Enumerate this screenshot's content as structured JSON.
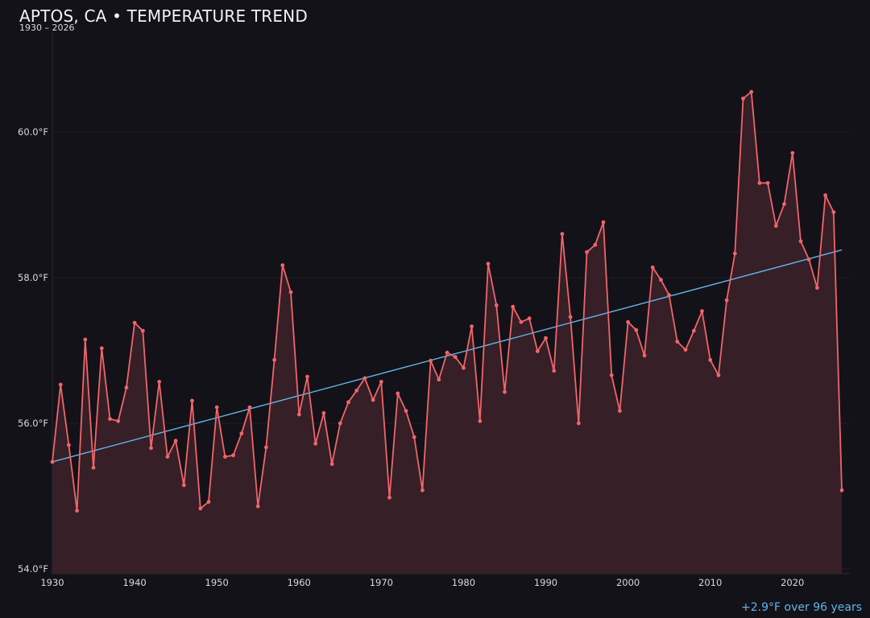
{
  "header": {
    "title": "APTOS, CA • TEMPERATURE TREND",
    "subtitle": "1930 – 2026"
  },
  "footer": {
    "annotation": "+2.9°F over 96 years"
  },
  "colors": {
    "background": "#131218",
    "line": "#f0656b",
    "fill": "#361f26",
    "trend": "#5fb6ea",
    "grid": "#1f1e25",
    "axis": "#2a2930",
    "text": "#d8d8dc"
  },
  "chart_data": {
    "type": "line",
    "title": "APTOS, CA • TEMPERATURE TREND",
    "subtitle": "1930 – 2026",
    "xlabel": "",
    "ylabel": "",
    "xlim": [
      1930,
      2026
    ],
    "ylim": [
      54.0,
      61.0
    ],
    "x_ticks": [
      1930,
      1940,
      1950,
      1960,
      1970,
      1980,
      1990,
      2000,
      2010,
      2020
    ],
    "y_ticks": [
      54.0,
      56.0,
      58.0,
      60.0
    ],
    "y_tick_labels": [
      "54.0°F",
      "56.0°F",
      "58.0°F",
      "60.0°F"
    ],
    "grid": true,
    "annotation": "+2.9°F over 96 years",
    "series": [
      {
        "name": "Annual mean temperature (°F)",
        "style": "line-with-markers-and-area-fill",
        "x": [
          1930,
          1931,
          1932,
          1933,
          1934,
          1935,
          1936,
          1937,
          1938,
          1939,
          1940,
          1941,
          1942,
          1943,
          1944,
          1945,
          1946,
          1947,
          1948,
          1949,
          1950,
          1951,
          1952,
          1953,
          1954,
          1955,
          1956,
          1957,
          1958,
          1959,
          1960,
          1961,
          1962,
          1963,
          1964,
          1965,
          1966,
          1967,
          1968,
          1969,
          1970,
          1971,
          1972,
          1973,
          1974,
          1975,
          1976,
          1977,
          1978,
          1979,
          1980,
          1981,
          1982,
          1983,
          1984,
          1985,
          1986,
          1987,
          1988,
          1989,
          1990,
          1991,
          1992,
          1993,
          1994,
          1995,
          1996,
          1997,
          1998,
          1999,
          2000,
          2001,
          2002,
          2003,
          2004,
          2005,
          2006,
          2007,
          2008,
          2009,
          2010,
          2011,
          2012,
          2013,
          2014,
          2015,
          2016,
          2017,
          2018,
          2019,
          2020,
          2021,
          2022,
          2023,
          2024,
          2025,
          2026
        ],
        "values": [
          55.47,
          56.53,
          55.7,
          54.8,
          57.15,
          55.39,
          57.03,
          56.06,
          56.03,
          56.49,
          57.38,
          57.27,
          55.66,
          56.57,
          55.54,
          55.76,
          55.15,
          56.31,
          54.83,
          54.92,
          56.22,
          55.54,
          55.56,
          55.86,
          56.22,
          54.86,
          55.67,
          56.87,
          58.17,
          57.8,
          56.12,
          56.64,
          55.72,
          56.14,
          55.44,
          56.0,
          56.29,
          56.45,
          56.62,
          56.32,
          56.57,
          54.98,
          56.41,
          56.17,
          55.81,
          55.08,
          56.86,
          56.6,
          56.97,
          56.91,
          56.76,
          57.33,
          56.03,
          58.19,
          57.62,
          56.43,
          57.6,
          57.39,
          57.44,
          56.99,
          57.17,
          56.72,
          58.6,
          57.46,
          56.0,
          58.35,
          58.45,
          58.76,
          56.66,
          56.17,
          57.39,
          57.28,
          56.93,
          58.14,
          57.97,
          57.76,
          57.12,
          57.01,
          57.27,
          57.54,
          56.87,
          56.66,
          57.69,
          58.33,
          60.46,
          60.55,
          59.3,
          59.3,
          58.71,
          59.01,
          59.71,
          58.5,
          58.25,
          57.86,
          59.13,
          58.9,
          55.08
        ]
      },
      {
        "name": "Linear trend",
        "style": "line",
        "x": [
          1930,
          2026
        ],
        "values": [
          55.47,
          58.38
        ]
      }
    ]
  }
}
